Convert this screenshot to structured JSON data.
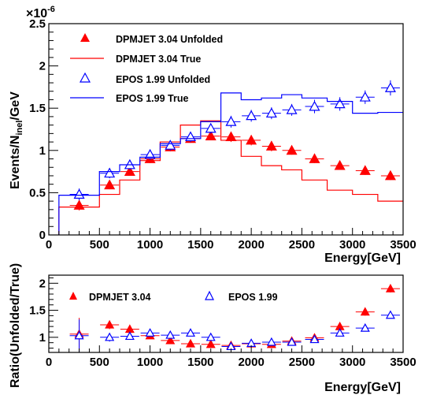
{
  "chart_data": [
    {
      "type": "line",
      "title": "",
      "xlabel": "Energy[GeV]",
      "ylabel_main": "Events/N",
      "ylabel_sub": "inel",
      "ylabel_end": "/GeV",
      "exponent": "×10",
      "exponent_power": "-6",
      "xlim": [
        0,
        3500
      ],
      "ylim": [
        0,
        2.5
      ],
      "xticks": [
        "0",
        "500",
        "1000",
        "1500",
        "2000",
        "2500",
        "3000",
        "3500"
      ],
      "yticks": [
        "0",
        "0.5",
        "1",
        "1.5",
        "2",
        "2.5"
      ],
      "legend_position": "top-left",
      "bin_edges": [
        100,
        500,
        700,
        900,
        1100,
        1300,
        1500,
        1700,
        1900,
        2100,
        2300,
        2500,
        2750,
        3000,
        3250,
        3500
      ],
      "series": [
        {
          "name": "DPMJET 3.04 Unfolded",
          "style": "filled-triangle",
          "color": "#ff0000",
          "x": [
            300,
            600,
            800,
            1000,
            1200,
            1400,
            1600,
            1800,
            2000,
            2200,
            2400,
            2625,
            2875,
            3125,
            3375
          ],
          "y": [
            0.35,
            0.59,
            0.75,
            0.9,
            1.04,
            1.14,
            1.17,
            1.16,
            1.12,
            1.05,
            1.0,
            0.9,
            0.82,
            0.76,
            0.7
          ],
          "yerr": [
            0.06,
            0.05,
            0.05,
            0.05,
            0.05,
            0.05,
            0.05,
            0.06,
            0.06,
            0.06,
            0.05,
            0.05,
            0.05,
            0.05,
            0.05
          ]
        },
        {
          "name": "DPMJET 3.04 True",
          "style": "step-line",
          "color": "#ff0000",
          "values": [
            0.33,
            0.48,
            0.65,
            0.88,
            1.1,
            1.3,
            1.35,
            1.12,
            0.93,
            0.82,
            0.77,
            0.65,
            0.53,
            0.48,
            0.4
          ]
        },
        {
          "name": "EPOS 1.99 Unfolded",
          "style": "open-triangle",
          "color": "#0000ff",
          "x": [
            300,
            600,
            800,
            1000,
            1200,
            1400,
            1600,
            1800,
            2000,
            2200,
            2400,
            2625,
            2875,
            3125,
            3375
          ],
          "y": [
            0.48,
            0.73,
            0.83,
            0.95,
            1.06,
            1.16,
            1.26,
            1.34,
            1.41,
            1.44,
            1.48,
            1.52,
            1.55,
            1.63,
            1.74
          ],
          "yerr": [
            0.07,
            0.06,
            0.06,
            0.06,
            0.06,
            0.06,
            0.06,
            0.07,
            0.07,
            0.07,
            0.07,
            0.08,
            0.08,
            0.08,
            0.09
          ]
        },
        {
          "name": "EPOS 1.99 True",
          "style": "step-line",
          "color": "#0000ff",
          "values": [
            0.47,
            0.75,
            0.83,
            0.92,
            1.08,
            1.14,
            1.34,
            1.68,
            1.6,
            1.62,
            1.66,
            1.62,
            1.58,
            1.44,
            1.45
          ]
        }
      ]
    },
    {
      "type": "scatter",
      "title": "",
      "xlabel": "Energy[GeV]",
      "ylabel": "Ratio(Unfolded/True)",
      "xlim": [
        0,
        3500
      ],
      "ylim": [
        0.72,
        2.15
      ],
      "xticks": [
        "0",
        "500",
        "1000",
        "1500",
        "2000",
        "2500",
        "3000",
        "3500"
      ],
      "yticks": [
        "1",
        "1.5",
        "2"
      ],
      "legend_position": "top",
      "series": [
        {
          "name": "DPMJET 3.04",
          "style": "filled-triangle",
          "color": "#ff0000",
          "x": [
            300,
            600,
            800,
            1000,
            1200,
            1400,
            1600,
            1800,
            2000,
            2200,
            2400,
            2625,
            2875,
            3125,
            3375
          ],
          "y": [
            1.06,
            1.23,
            1.15,
            1.03,
            0.94,
            0.88,
            0.87,
            0.85,
            0.88,
            0.87,
            0.93,
            0.99,
            1.2,
            1.47,
            1.9
          ],
          "yerr": [
            0.3,
            0.08,
            0.06,
            0.06,
            0.05,
            0.05,
            0.05,
            0.05,
            0.05,
            0.05,
            0.05,
            0.06,
            0.07,
            0.07,
            0.07
          ]
        },
        {
          "name": "EPOS 1.99",
          "style": "open-triangle",
          "color": "#0000ff",
          "x": [
            300,
            600,
            800,
            1000,
            1200,
            1400,
            1600,
            1800,
            2000,
            2200,
            2400,
            2625,
            2875,
            3125,
            3375
          ],
          "y": [
            1.03,
            1.0,
            1.02,
            1.08,
            1.04,
            1.08,
            1.0,
            0.83,
            0.89,
            0.91,
            0.91,
            0.96,
            1.08,
            1.17,
            1.41
          ],
          "yerr": [
            0.3,
            0.08,
            0.06,
            0.06,
            0.05,
            0.05,
            0.05,
            0.05,
            0.05,
            0.05,
            0.05,
            0.06,
            0.06,
            0.06,
            0.06
          ]
        }
      ]
    }
  ]
}
